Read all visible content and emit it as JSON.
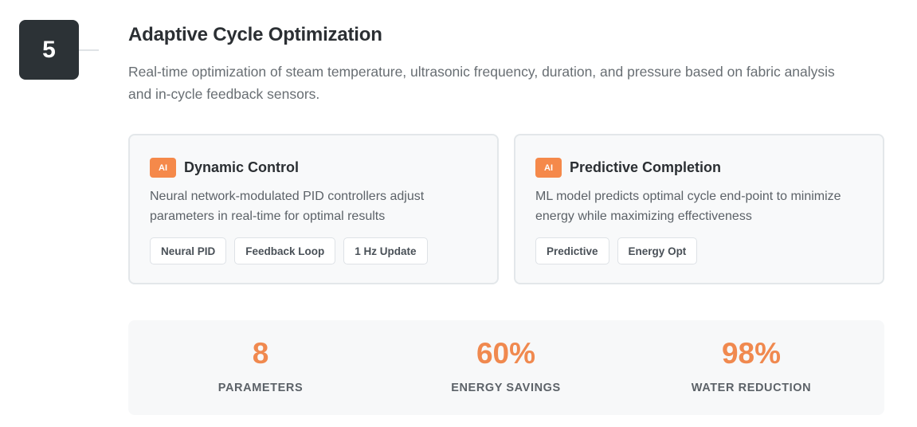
{
  "step": {
    "number": "5"
  },
  "header": {
    "title": "Adaptive Cycle Optimization",
    "description": "Real-time optimization of steam temperature, ultrasonic frequency, duration, and pressure based on fabric analysis and in-cycle feedback sensors."
  },
  "cards": [
    {
      "badge": "AI",
      "title": "Dynamic Control",
      "text": "Neural network-modulated PID controllers adjust parameters in real-time for optimal results",
      "tags": [
        "Neural PID",
        "Feedback Loop",
        "1 Hz Update"
      ]
    },
    {
      "badge": "AI",
      "title": "Predictive Completion",
      "text": "ML model predicts optimal cycle end-point to minimize energy while maximizing effectiveness",
      "tags": [
        "Predictive",
        "Energy Opt"
      ]
    }
  ],
  "stats": [
    {
      "value": "8",
      "label": "PARAMETERS"
    },
    {
      "value": "60%",
      "label": "ENERGY SAVINGS"
    },
    {
      "value": "98%",
      "label": "WATER REDUCTION"
    }
  ],
  "colors": {
    "accent": "#f5894a",
    "badge_dark": "#2c3236"
  }
}
